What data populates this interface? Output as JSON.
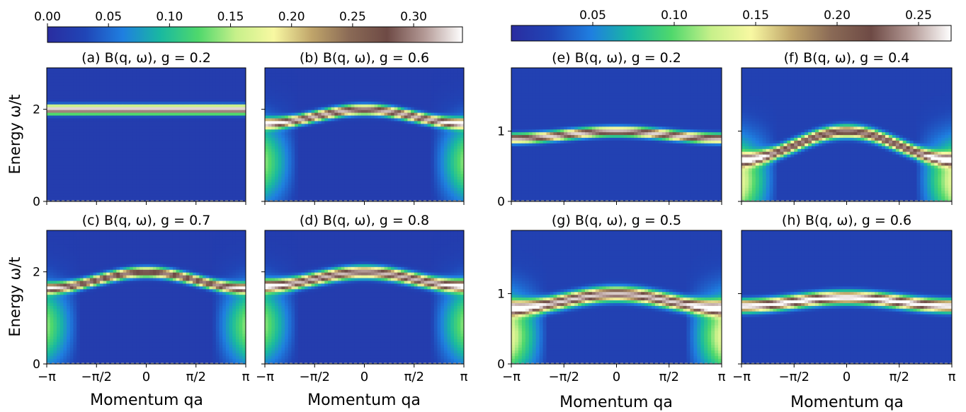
{
  "colors": {
    "colormap": [
      "#2a2da0",
      "#2045b6",
      "#1f7fe0",
      "#19b9a0",
      "#4fd86c",
      "#c7f08a",
      "#f8f8a2",
      "#c0a56a",
      "#8a6a56",
      "#6e4a45",
      "#b49a96",
      "#ffffff"
    ],
    "background": "#2a3aa8",
    "dashed": "#9a9a9a"
  },
  "colorbars": [
    {
      "ticks": [
        "0.00",
        "0.05",
        "0.10",
        "0.15",
        "0.20",
        "0.25",
        "0.30"
      ],
      "tick_values": [
        0,
        0.05,
        0.1,
        0.15,
        0.2,
        0.25,
        0.3
      ],
      "range": [
        0,
        0.34
      ]
    },
    {
      "ticks": [
        "0.05",
        "0.10",
        "0.15",
        "0.20",
        "0.25"
      ],
      "tick_values": [
        0.05,
        0.1,
        0.15,
        0.2,
        0.25
      ],
      "range": [
        0,
        0.27
      ]
    }
  ],
  "axes_text": {
    "ylabel": "Energy ω/t",
    "xlabel": "Momentum qa",
    "xticks": [
      "−π",
      "−π/2",
      "0",
      "π/2",
      "π"
    ]
  },
  "chart_data": [
    {
      "type": "heatmap",
      "panel": "a",
      "title": "(a) B(q, ω), g = 0.2",
      "x_range": [
        -3.1416,
        3.1416
      ],
      "ylim": [
        0,
        2.9
      ],
      "yticks": [
        "0",
        "2"
      ],
      "ytick_values": [
        0,
        2
      ],
      "dispersion": {
        "center": 2.0,
        "amp": 0.0
      },
      "width": 0.09,
      "peak": 0.33
    },
    {
      "type": "heatmap",
      "panel": "b",
      "title": "(b) B(q, ω), g = 0.6",
      "x_range": [
        -3.1416,
        3.1416
      ],
      "ylim": [
        0,
        2.9
      ],
      "yticks": [
        "0",
        "2"
      ],
      "ytick_values": [
        0,
        2
      ],
      "dispersion": {
        "center": 2.0,
        "amp": 0.3
      },
      "width": 0.1,
      "peak": 0.3
    },
    {
      "type": "heatmap",
      "panel": "c",
      "title": "(c) B(q, ω), g = 0.7",
      "x_range": [
        -3.1416,
        3.1416
      ],
      "ylim": [
        0,
        2.9
      ],
      "yticks": [
        "0",
        "2"
      ],
      "ytick_values": [
        0,
        2
      ],
      "dispersion": {
        "center": 2.0,
        "amp": 0.35
      },
      "width": 0.1,
      "peak": 0.28
    },
    {
      "type": "heatmap",
      "panel": "d",
      "title": "(d) B(q, ω), g = 0.8",
      "x_range": [
        -3.1416,
        3.1416
      ],
      "ylim": [
        0,
        2.9
      ],
      "yticks": [
        "0",
        "2"
      ],
      "ytick_values": [
        0,
        2
      ],
      "dispersion": {
        "center": 2.0,
        "amp": 0.3
      },
      "width": 0.12,
      "peak": 0.3
    },
    {
      "type": "heatmap",
      "panel": "e",
      "title": "(e) B(q, ω), g = 0.2",
      "x_range": [
        -3.1416,
        3.1416
      ],
      "ylim": [
        0,
        1.9
      ],
      "yticks": [
        "0",
        "1"
      ],
      "ytick_values": [
        0,
        1
      ],
      "dispersion": {
        "center": 1.0,
        "amp": 0.1
      },
      "width": 0.06,
      "peak": 0.24
    },
    {
      "type": "heatmap",
      "panel": "f",
      "title": "(f) B(q, ω), g = 0.4",
      "x_range": [
        -3.1416,
        3.1416
      ],
      "ylim": [
        0,
        1.9
      ],
      "yticks": [
        "0",
        "1"
      ],
      "ytick_values": [
        0,
        1
      ],
      "dispersion": {
        "center": 1.0,
        "amp": 0.4
      },
      "width": 0.08,
      "peak": 0.22
    },
    {
      "type": "heatmap",
      "panel": "g",
      "title": "(g) B(q, ω), g = 0.5",
      "x_range": [
        -3.1416,
        3.1416
      ],
      "ylim": [
        0,
        1.9
      ],
      "yticks": [
        "0",
        "1"
      ],
      "ytick_values": [
        0,
        1
      ],
      "dispersion": {
        "center": 1.0,
        "amp": 0.2
      },
      "width": 0.09,
      "peak": 0.24
    },
    {
      "type": "heatmap",
      "panel": "h",
      "title": "(h) B(q, ω), g = 0.6",
      "x_range": [
        -3.1416,
        3.1416
      ],
      "ylim": [
        0,
        1.9
      ],
      "yticks": [
        "0",
        "1"
      ],
      "ytick_values": [
        0,
        1
      ],
      "dispersion": {
        "center": 0.95,
        "amp": 0.12
      },
      "width": 0.08,
      "peak": 0.26
    }
  ]
}
